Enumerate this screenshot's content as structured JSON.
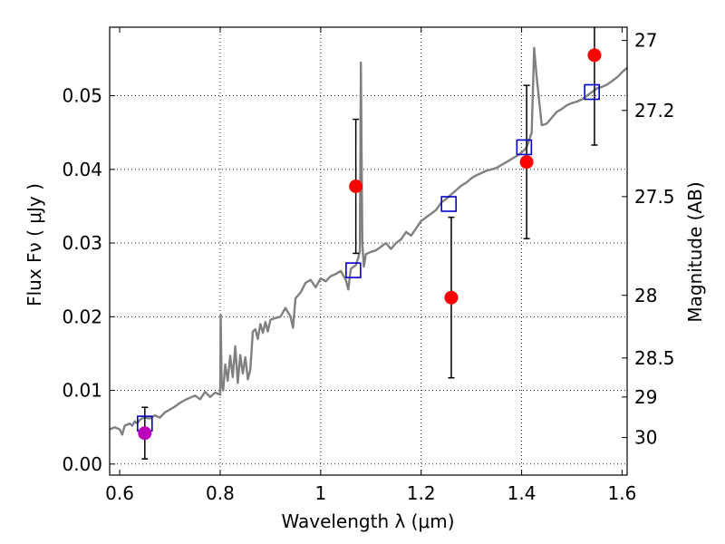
{
  "chart_data": {
    "type": "scatter",
    "xlabel": "Wavelength  λ (μm)",
    "ylabel": "Flux  Fν  ( μJy )",
    "y2label": "Magnitude (AB)",
    "xlim": [
      0.58,
      1.61
    ],
    "ylim": [
      -0.0015,
      0.0593
    ],
    "grid": true,
    "xticks": [
      0.6,
      0.8,
      1.0,
      1.2,
      1.4,
      1.6
    ],
    "xtick_labels": [
      "0.6",
      "0.8",
      "1",
      "1.2",
      "1.4",
      "1.6"
    ],
    "yticks": [
      0.0,
      0.01,
      0.02,
      0.03,
      0.04,
      0.05
    ],
    "ytick_labels": [
      "0.00",
      "0.01",
      "0.02",
      "0.03",
      "0.04",
      "0.05"
    ],
    "y2ticks": [
      {
        "label": "27",
        "flux": 0.0575
      },
      {
        "label": "27.2",
        "flux": 0.048
      },
      {
        "label": "27.5",
        "flux": 0.0363
      },
      {
        "label": "28",
        "flux": 0.0229
      },
      {
        "label": "28.5",
        "flux": 0.0144
      },
      {
        "label": "29",
        "flux": 0.0091
      },
      {
        "label": "30",
        "flux": 0.0036
      }
    ],
    "series": [
      {
        "kind": "model_spectrum",
        "color": "#808080",
        "x": [
          0.58,
          0.59,
          0.6,
          0.605,
          0.61,
          0.62,
          0.625,
          0.63,
          0.635,
          0.64,
          0.645,
          0.65,
          0.66,
          0.67,
          0.68,
          0.69,
          0.7,
          0.71,
          0.72,
          0.73,
          0.74,
          0.75,
          0.76,
          0.77,
          0.78,
          0.79,
          0.8,
          0.801,
          0.803,
          0.806,
          0.81,
          0.815,
          0.82,
          0.825,
          0.83,
          0.835,
          0.84,
          0.845,
          0.85,
          0.855,
          0.86,
          0.865,
          0.87,
          0.875,
          0.88,
          0.885,
          0.89,
          0.895,
          0.9,
          0.91,
          0.92,
          0.93,
          0.94,
          0.945,
          0.95,
          0.96,
          0.97,
          0.98,
          0.99,
          1.0,
          1.01,
          1.02,
          1.03,
          1.04,
          1.05,
          1.055,
          1.06,
          1.07,
          1.075,
          1.078,
          1.08,
          1.083,
          1.086,
          1.09,
          1.1,
          1.11,
          1.12,
          1.13,
          1.14,
          1.15,
          1.16,
          1.17,
          1.18,
          1.19,
          1.2,
          1.21,
          1.22,
          1.23,
          1.24,
          1.25,
          1.26,
          1.27,
          1.28,
          1.29,
          1.3,
          1.31,
          1.32,
          1.33,
          1.34,
          1.35,
          1.36,
          1.37,
          1.38,
          1.39,
          1.4,
          1.405,
          1.41,
          1.415,
          1.42,
          1.425,
          1.43,
          1.44,
          1.45,
          1.46,
          1.47,
          1.48,
          1.49,
          1.5,
          1.51,
          1.52,
          1.53,
          1.54,
          1.55,
          1.56,
          1.57,
          1.58,
          1.59,
          1.6,
          1.61
        ],
        "y": [
          0.0047,
          0.005,
          0.0047,
          0.004,
          0.0052,
          0.0055,
          0.0052,
          0.0058,
          0.0055,
          0.006,
          0.0062,
          0.0063,
          0.0062,
          0.0066,
          0.0063,
          0.007,
          0.0074,
          0.0078,
          0.0083,
          0.0087,
          0.009,
          0.0093,
          0.0088,
          0.0098,
          0.0091,
          0.0097,
          0.0094,
          0.0203,
          0.011,
          0.01,
          0.0135,
          0.0113,
          0.0147,
          0.0118,
          0.016,
          0.011,
          0.0148,
          0.0123,
          0.0145,
          0.0115,
          0.0128,
          0.018,
          0.0183,
          0.017,
          0.019,
          0.0178,
          0.0193,
          0.018,
          0.0196,
          0.0198,
          0.02,
          0.0212,
          0.02,
          0.0185,
          0.0225,
          0.0233,
          0.0246,
          0.025,
          0.024,
          0.0252,
          0.0248,
          0.0255,
          0.0258,
          0.0262,
          0.025,
          0.0237,
          0.0265,
          0.027,
          0.028,
          0.029,
          0.0545,
          0.03,
          0.0268,
          0.0285,
          0.0288,
          0.029,
          0.0295,
          0.03,
          0.0292,
          0.03,
          0.0305,
          0.0315,
          0.031,
          0.032,
          0.033,
          0.0335,
          0.034,
          0.0345,
          0.0355,
          0.036,
          0.0366,
          0.0372,
          0.0378,
          0.0382,
          0.0388,
          0.0392,
          0.0395,
          0.0398,
          0.04,
          0.0402,
          0.0406,
          0.041,
          0.0414,
          0.0418,
          0.0423,
          0.0426,
          0.043,
          0.044,
          0.045,
          0.0565,
          0.0525,
          0.046,
          0.0462,
          0.047,
          0.0478,
          0.0482,
          0.0487,
          0.049,
          0.0492,
          0.0495,
          0.05,
          0.0505,
          0.051,
          0.0512,
          0.0515,
          0.052,
          0.0525,
          0.0532,
          0.0538
        ]
      },
      {
        "kind": "model_photometry",
        "marker": "open-square",
        "color": "#0000cc",
        "x": [
          0.65,
          1.065,
          1.255,
          1.405,
          1.54
        ],
        "y": [
          0.0055,
          0.0263,
          0.0353,
          0.043,
          0.0505
        ]
      },
      {
        "kind": "observed",
        "marker": "filled-circle",
        "color": "#ff0000",
        "x": [
          1.07,
          1.26,
          1.41,
          1.545
        ],
        "y": [
          0.0377,
          0.0226,
          0.041,
          0.0555
        ],
        "err": [
          0.0091,
          0.0109,
          0.0104,
          0.0122
        ]
      },
      {
        "kind": "observed_optical",
        "marker": "filled-circle",
        "color": "#bb00bb",
        "x": [
          0.65
        ],
        "y": [
          0.0042
        ],
        "err": [
          0.0035
        ]
      }
    ]
  }
}
